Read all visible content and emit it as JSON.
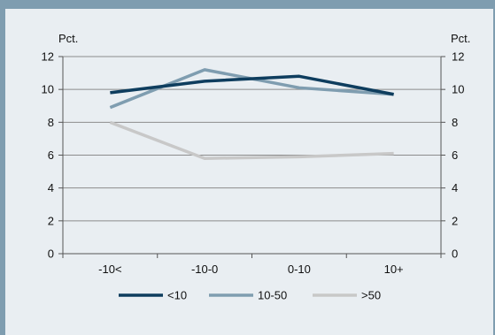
{
  "chart_data": {
    "type": "line",
    "categories": [
      "-10<",
      "-10-0",
      "0-10",
      "10+"
    ],
    "series": [
      {
        "name": "<10",
        "values": [
          9.8,
          10.5,
          10.8,
          9.7
        ],
        "color": "#0e3d5e"
      },
      {
        "name": "10-50",
        "values": [
          8.9,
          11.2,
          10.1,
          9.7
        ],
        "color": "#7f9db0"
      },
      {
        "name": ">50",
        "values": [
          8.0,
          5.8,
          5.9,
          6.1
        ],
        "color": "#c8c8c8"
      }
    ],
    "y_unit_left": "Pct.",
    "y_unit_right": "Pct.",
    "ylim": [
      0,
      12
    ],
    "yticks": [
      0,
      2,
      4,
      6,
      8,
      10,
      12
    ],
    "grid": true,
    "legend_position": "bottom-center",
    "colors": {
      "background": "#e9eef2",
      "frame": "#7f9db0",
      "axis": "#555555"
    }
  }
}
